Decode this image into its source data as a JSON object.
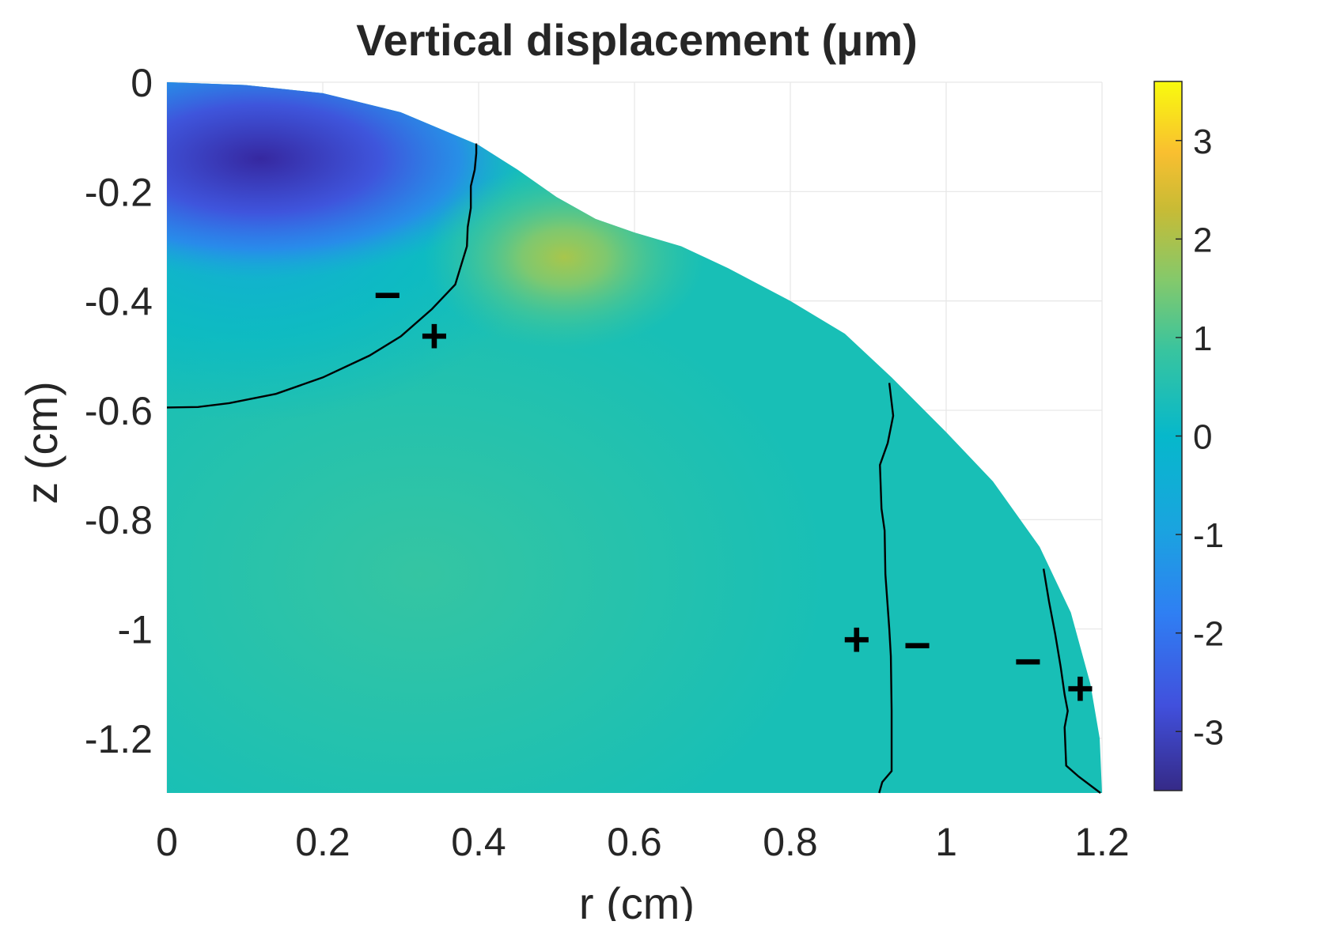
{
  "chart_data": {
    "type": "heatmap",
    "title": "Vertical  displacement  (μm)",
    "xlabel": "r (cm)",
    "ylabel": "z (cm)",
    "xlim": [
      0,
      1.2
    ],
    "ylim": [
      -1.3,
      0
    ],
    "x_ticks": [
      "0",
      "0.2",
      "0.4",
      "0.6",
      "0.8",
      "1",
      "1.2"
    ],
    "x_tick_values": [
      0,
      0.2,
      0.4,
      0.6,
      0.8,
      1,
      1.2
    ],
    "y_ticks": [
      "0",
      "-0.2",
      "-0.4",
      "-0.6",
      "-0.8",
      "-1",
      "-1.2"
    ],
    "y_tick_values": [
      0,
      -0.2,
      -0.4,
      -0.6,
      -0.8,
      -1,
      -1.2
    ],
    "grid": true,
    "colorbar": {
      "colormap": "parula",
      "range": [
        -3.6,
        3.6
      ],
      "ticks": [
        "3",
        "2",
        "1",
        "0",
        "-1",
        "-2",
        "-3"
      ],
      "tick_values": [
        3,
        2,
        1,
        0,
        -1,
        -2,
        -3
      ]
    },
    "domain_boundary": [
      [
        0,
        0
      ],
      [
        0.1,
        -0.005
      ],
      [
        0.2,
        -0.02
      ],
      [
        0.3,
        -0.055
      ],
      [
        0.4,
        -0.115
      ],
      [
        0.45,
        -0.16
      ],
      [
        0.5,
        -0.21
      ],
      [
        0.55,
        -0.25
      ],
      [
        0.6,
        -0.275
      ],
      [
        0.66,
        -0.3
      ],
      [
        0.72,
        -0.34
      ],
      [
        0.8,
        -0.4
      ],
      [
        0.87,
        -0.46
      ],
      [
        0.93,
        -0.54
      ],
      [
        1.0,
        -0.64
      ],
      [
        1.06,
        -0.73
      ],
      [
        1.12,
        -0.85
      ],
      [
        1.16,
        -0.97
      ],
      [
        1.185,
        -1.1
      ],
      [
        1.197,
        -1.2
      ],
      [
        1.2,
        -1.3
      ]
    ],
    "field_samples": [
      {
        "r": 0.05,
        "z": -0.12,
        "value": -3.2
      },
      {
        "r": 0.15,
        "z": -0.15,
        "value": -2.9
      },
      {
        "r": 0.25,
        "z": -0.15,
        "value": -2.4
      },
      {
        "r": 0.0,
        "z": -0.3,
        "value": -1.6
      },
      {
        "r": 0.15,
        "z": -0.45,
        "value": -0.3
      },
      {
        "r": 0.51,
        "z": -0.32,
        "value": 1.2
      },
      {
        "r": 0.45,
        "z": -0.6,
        "value": 0.6
      },
      {
        "r": 0.3,
        "z": -0.85,
        "value": 0.45
      },
      {
        "r": 0.6,
        "z": -1.2,
        "value": 0.2
      },
      {
        "r": 1.0,
        "z": -0.9,
        "value": 0.05
      }
    ],
    "zero_contours": [
      {
        "name": "contour-1",
        "points": [
          [
            0,
            -0.595
          ],
          [
            0.04,
            -0.594
          ],
          [
            0.08,
            -0.587
          ],
          [
            0.14,
            -0.57
          ],
          [
            0.2,
            -0.54
          ],
          [
            0.26,
            -0.5
          ],
          [
            0.3,
            -0.465
          ],
          [
            0.34,
            -0.415
          ],
          [
            0.37,
            -0.37
          ],
          [
            0.385,
            -0.3
          ],
          [
            0.386,
            -0.265
          ],
          [
            0.39,
            -0.23
          ],
          [
            0.39,
            -0.19
          ],
          [
            0.395,
            -0.16
          ],
          [
            0.397,
            -0.13
          ],
          [
            0.397,
            -0.112
          ]
        ]
      },
      {
        "name": "contour-2",
        "points": [
          [
            0.927,
            -0.55
          ],
          [
            0.932,
            -0.61
          ],
          [
            0.925,
            -0.66
          ],
          [
            0.915,
            -0.7
          ],
          [
            0.917,
            -0.78
          ],
          [
            0.921,
            -0.82
          ],
          [
            0.922,
            -0.9
          ],
          [
            0.927,
            -1.0
          ],
          [
            0.929,
            -1.05
          ],
          [
            0.93,
            -1.15
          ],
          [
            0.93,
            -1.26
          ],
          [
            0.918,
            -1.28
          ],
          [
            0.914,
            -1.3
          ]
        ]
      },
      {
        "name": "contour-3",
        "points": [
          [
            1.125,
            -0.89
          ],
          [
            1.132,
            -0.95
          ],
          [
            1.14,
            -1.01
          ],
          [
            1.147,
            -1.07
          ],
          [
            1.152,
            -1.12
          ],
          [
            1.156,
            -1.15
          ],
          [
            1.152,
            -1.18
          ],
          [
            1.154,
            -1.25
          ],
          [
            1.17,
            -1.27
          ],
          [
            1.198,
            -1.3
          ]
        ]
      }
    ],
    "annotations": [
      {
        "text": "−",
        "r": 0.283,
        "z": -0.39
      },
      {
        "text": "+",
        "r": 0.343,
        "z": -0.465
      },
      {
        "text": "+",
        "r": 0.885,
        "z": -1.02
      },
      {
        "text": "−",
        "r": 0.963,
        "z": -1.03
      },
      {
        "text": "−",
        "r": 1.105,
        "z": -1.06
      },
      {
        "text": "+",
        "r": 1.172,
        "z": -1.11
      }
    ]
  }
}
